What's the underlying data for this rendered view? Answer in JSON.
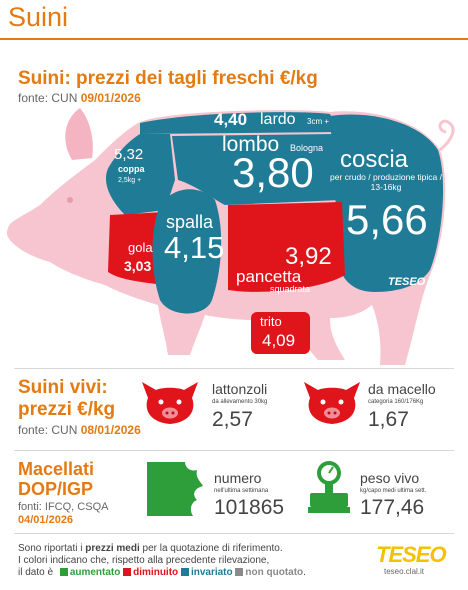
{
  "header": {
    "title": "Suini"
  },
  "cuts": {
    "title": "Suini: prezzi dei tagli freschi €/kg",
    "source_label": "fonte: CUN",
    "source_date": "09/01/2026"
  },
  "chart_data": {
    "type": "table",
    "title": "Suini: prezzi dei tagli freschi €/kg",
    "unit": "€/kg",
    "rows": [
      {
        "cut": "lardo",
        "note": "3cm +",
        "value": "4,40",
        "trend": "invariato"
      },
      {
        "cut": "lombo",
        "note": "Bologna",
        "value": "3,80",
        "trend": "invariato"
      },
      {
        "cut": "coppa",
        "note": "2,5kg +",
        "value": "5,32",
        "trend": "invariato"
      },
      {
        "cut": "coscia",
        "note": "per crudo / produzione tipica / 13-16kg",
        "value": "5,66",
        "trend": "invariato"
      },
      {
        "cut": "spalla",
        "note": "",
        "value": "4,15",
        "trend": "invariato"
      },
      {
        "cut": "gola",
        "note": "",
        "value": "3,03",
        "trend": "diminuito"
      },
      {
        "cut": "pancetta",
        "note": "squadrata",
        "value": "3,92",
        "trend": "diminuito"
      },
      {
        "cut": "trito",
        "note": "",
        "value": "4,09",
        "trend": "diminuito"
      }
    ]
  },
  "live": {
    "title1": "Suini vivi:",
    "title2": "prezzi €/kg",
    "source_label": "fonte: CUN",
    "source_date": "08/01/2026",
    "items": [
      {
        "name": "lattonzoli",
        "sub": "da allevamento 30kg",
        "value": "2,57"
      },
      {
        "name": "da macello",
        "sub": "categoria 160/176Kg",
        "value": "1,67"
      }
    ]
  },
  "dop": {
    "title1": "Macellati",
    "title2": "DOP/IGP",
    "source": "fonti: IFCQ, CSQA",
    "date": "04/01/2026",
    "items": [
      {
        "name": "numero",
        "sub": "nell'ultima settimana",
        "value": "101865"
      },
      {
        "name": "peso vivo",
        "sub": "kg/capo medi ultima sett.",
        "value": "177,46"
      }
    ]
  },
  "footer": {
    "line1_a": "Sono riportati i ",
    "line1_b": "prezzi medi",
    "line1_c": " per la quotazione di riferimento.",
    "line2": "I colori indicano che, rispetto alla precedente rilevazione,",
    "line3": "il dato è",
    "legend": [
      {
        "label": "aumentato",
        "color": "#2e9e3a"
      },
      {
        "label": "diminuito",
        "color": "#e0141b"
      },
      {
        "label": "invariato",
        "color": "#1f7b96"
      },
      {
        "label": "non quotato",
        "color": "#8a8a8a"
      }
    ],
    "end": "."
  },
  "brand": {
    "name": "TESEO",
    "site": "teseo.clal.it"
  },
  "colors": {
    "teal": "#1f7b96",
    "red": "#e0141b",
    "green": "#2e9e3a",
    "orange": "#e47a12",
    "pink": "#f7c5cf"
  }
}
